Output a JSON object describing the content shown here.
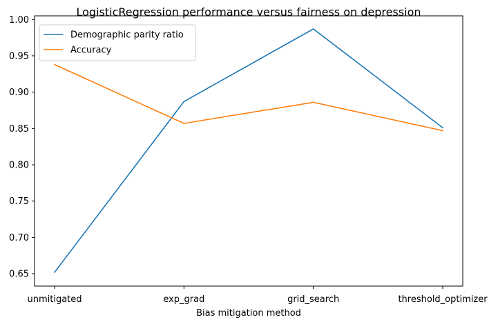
{
  "chart_data": {
    "type": "line",
    "title": "LogisticRegression performance versus fairness on depression",
    "xlabel": "Bias mitigation method",
    "ylabel": "",
    "categories": [
      "unmitigated",
      "exp_grad",
      "grid_search",
      "threshold_optimizer"
    ],
    "ylim": [
      0.633,
      1.005
    ],
    "yticks": [
      0.65,
      0.7,
      0.75,
      0.8,
      0.85,
      0.9,
      0.95,
      1.0
    ],
    "ytick_labels": [
      "0.65",
      "0.70",
      "0.75",
      "0.80",
      "0.85",
      "0.90",
      "0.95",
      "1.00"
    ],
    "grid": false,
    "legend_position": "top-left",
    "series": [
      {
        "name": "Demographic parity ratio",
        "color": "#1f77b4",
        "values": [
          0.652,
          0.887,
          0.987,
          0.851
        ]
      },
      {
        "name": "Accuracy",
        "color": "#ff7f0e",
        "values": [
          0.938,
          0.857,
          0.886,
          0.847
        ]
      }
    ]
  }
}
